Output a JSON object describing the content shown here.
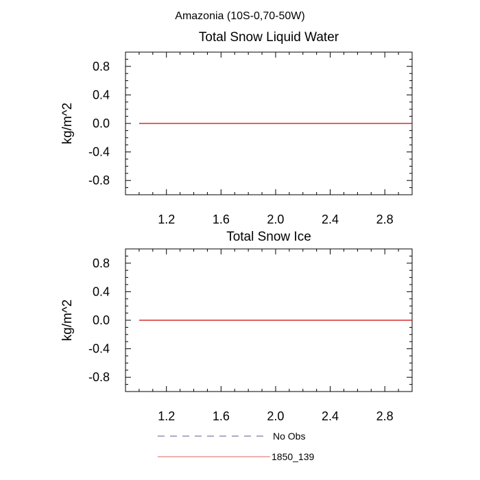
{
  "suptitle": "Amazonia (10S-0,70-50W)",
  "chart_data": [
    {
      "type": "line",
      "title": "Total Snow Liquid Water",
      "xlabel": "",
      "ylabel": "kg/m^2",
      "xlim": [
        0.9,
        3.0
      ],
      "ylim": [
        -1.0,
        1.0
      ],
      "xticks": [
        "1.2",
        "1.6",
        "2.0",
        "2.4",
        "2.8"
      ],
      "yticks": [
        "0.8",
        "0.4",
        "0.0",
        "-0.4",
        "-0.8"
      ],
      "grid": false,
      "series": [
        {
          "name": "1850_139",
          "color": "#cc0000",
          "x": [
            1.0,
            3.0
          ],
          "y": [
            0.0,
            0.0
          ]
        }
      ]
    },
    {
      "type": "line",
      "title": "Total Snow Ice",
      "xlabel": "",
      "ylabel": "kg/m^2",
      "xlim": [
        0.9,
        3.0
      ],
      "ylim": [
        -1.0,
        1.0
      ],
      "xticks": [
        "1.2",
        "1.6",
        "2.0",
        "2.4",
        "2.8"
      ],
      "yticks": [
        "0.8",
        "0.4",
        "0.0",
        "-0.4",
        "-0.8"
      ],
      "grid": false,
      "series": [
        {
          "name": "1850_139",
          "color": "#cc0000",
          "x": [
            1.0,
            3.0
          ],
          "y": [
            0.0,
            0.0
          ]
        }
      ]
    }
  ],
  "legend": {
    "placement": "bottom",
    "items": [
      {
        "label": "No Obs",
        "style": "dashed",
        "color": "#5a5a8a"
      },
      {
        "label": "1850_139",
        "style": "solid",
        "color": "#e06060"
      }
    ]
  }
}
